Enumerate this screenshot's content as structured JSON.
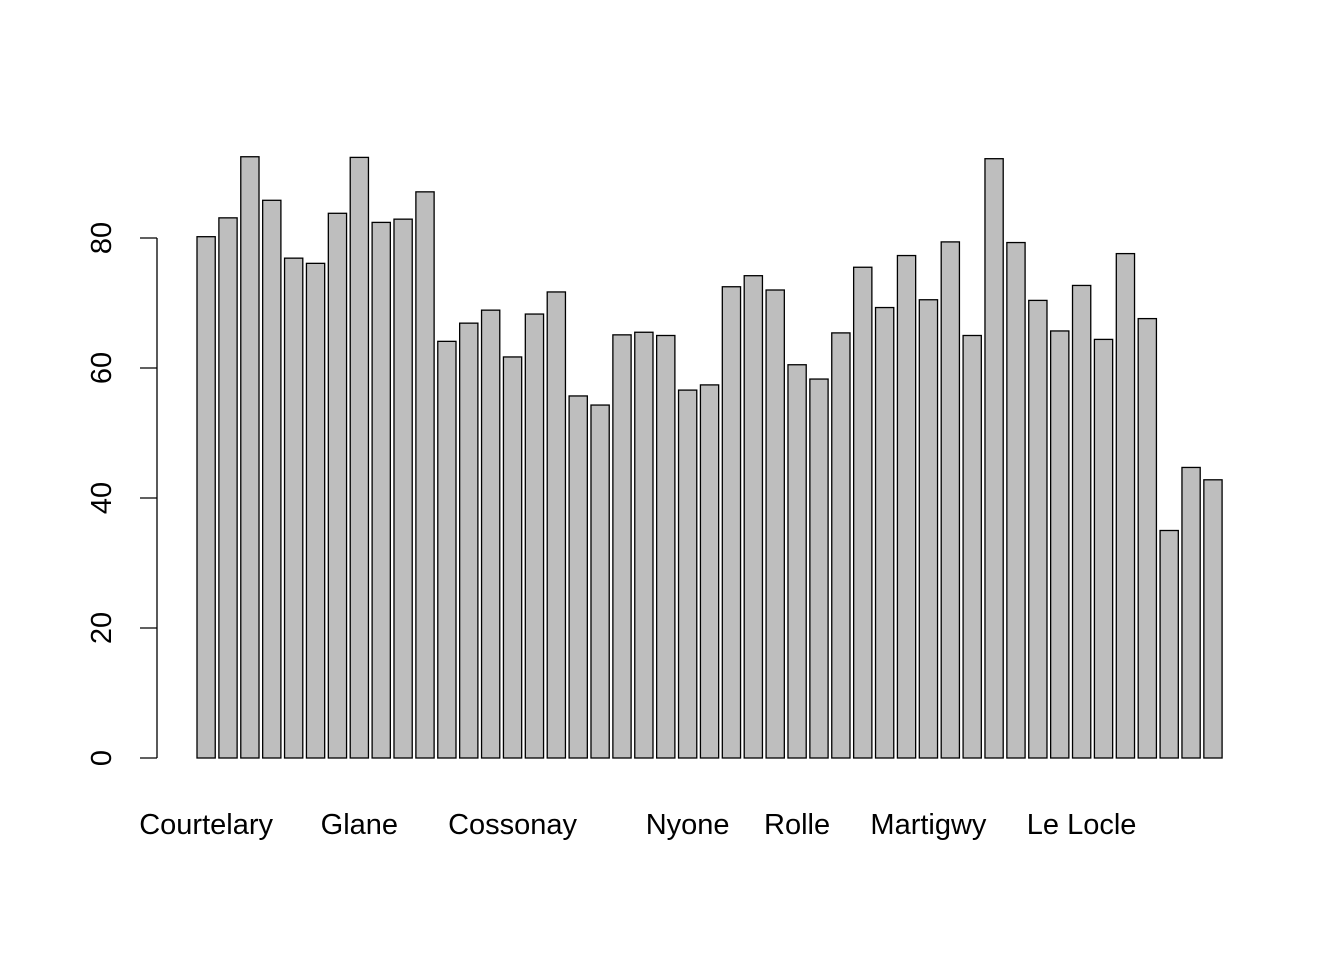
{
  "chart_data": {
    "type": "bar",
    "title": "",
    "xlabel": "",
    "ylabel": "",
    "ylim": [
      0,
      92.5
    ],
    "yticks": [
      0,
      20,
      40,
      60,
      80
    ],
    "grid": false,
    "bar_color": "#bebebe",
    "border_color": "#000000",
    "categories": [
      "Courtelary",
      "",
      "",
      "",
      "",
      "",
      "",
      "Glane",
      "",
      "",
      "",
      "",
      "",
      "",
      "Cossonay",
      "",
      "",
      "",
      "",
      "",
      "",
      "",
      "Nyone",
      "",
      "",
      "",
      "",
      "Rolle",
      "",
      "",
      "",
      "",
      "",
      "Martigwy",
      "",
      "",
      "",
      "",
      "",
      "",
      "Le Locle",
      "",
      "",
      "",
      "",
      "",
      ""
    ],
    "values": [
      80.2,
      83.1,
      92.5,
      85.8,
      76.9,
      76.1,
      83.8,
      92.4,
      82.4,
      82.9,
      87.1,
      64.1,
      66.9,
      68.9,
      61.7,
      68.3,
      71.7,
      55.7,
      54.3,
      65.1,
      65.5,
      65.0,
      56.6,
      57.4,
      72.5,
      74.2,
      72.0,
      60.5,
      58.3,
      65.4,
      75.5,
      69.3,
      77.3,
      70.5,
      79.4,
      65.0,
      92.2,
      79.3,
      70.4,
      65.7,
      72.7,
      64.4,
      77.6,
      67.6,
      35.0,
      44.7,
      42.8
    ]
  }
}
